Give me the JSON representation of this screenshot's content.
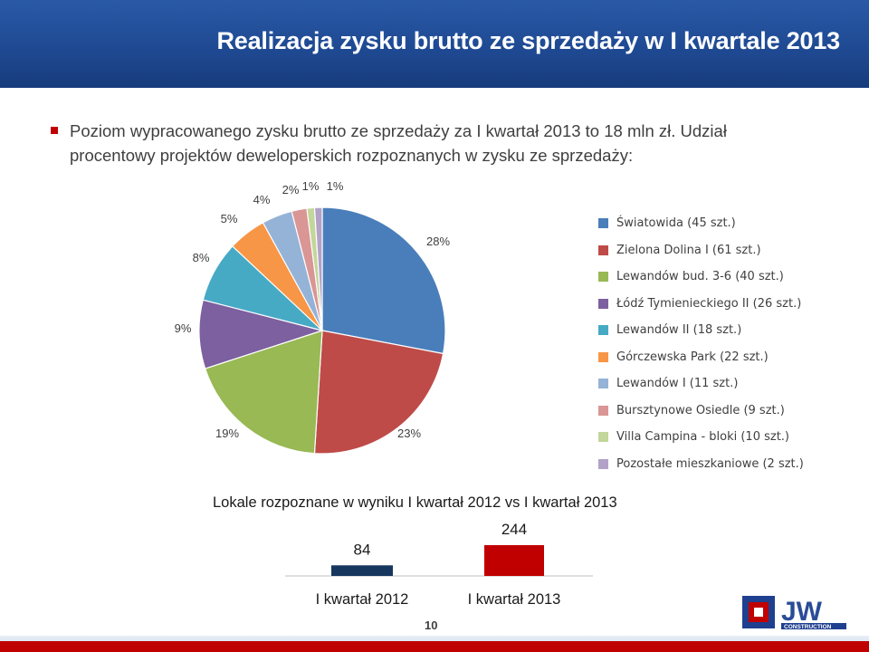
{
  "slide": {
    "title": "Realizacja zysku brutto ze sprzedaży w I kwartale 2013",
    "bullet": "Poziom wypracowanego zysku brutto ze sprzedaży za I kwartał 2013 to 18 mln zł. Udział procentowy projektów deweloperskich rozpoznanych w zysku ze sprzedaży:",
    "page_number": "10",
    "logo_text": "JW",
    "logo_subtext": "CONSTRUCTION"
  },
  "colors": {
    "title_bar": "#1f4a93",
    "bullet": "#c00000",
    "bar_2012": "#17375e",
    "bar_2013": "#c00000"
  },
  "chart_data": [
    {
      "type": "pie",
      "values": [
        28,
        23,
        19,
        9,
        8,
        5,
        4,
        2,
        1,
        1
      ],
      "labels": [
        "28%",
        "23%",
        "19%",
        "9%",
        "8%",
        "5%",
        "4%",
        "2%",
        "1%",
        "1%"
      ],
      "legend": [
        {
          "name": "Światowida (45 szt.)",
          "color": "#4a7ebb"
        },
        {
          "name": "Zielona Dolina I (61 szt.)",
          "color": "#be4b48"
        },
        {
          "name": "Lewandów bud. 3-6 (40 szt.)",
          "color": "#98b954"
        },
        {
          "name": "Łódź Tymienieckiego II (26 szt.)",
          "color": "#7d60a0"
        },
        {
          "name": "Lewandów II (18 szt.)",
          "color": "#46aac5"
        },
        {
          "name": "Górczewska Park (22 szt.)",
          "color": "#f79646"
        },
        {
          "name": "Lewandów I (11 szt.)",
          "color": "#95b3d7"
        },
        {
          "name": "Bursztynowe Osiedle (9 szt.)",
          "color": "#d99694"
        },
        {
          "name": "Villa Campina - bloki (10 szt.)",
          "color": "#c3d69b"
        },
        {
          "name": "Pozostałe mieszkaniowe (2 szt.)",
          "color": "#b3a2c7"
        }
      ],
      "legend_position": "right"
    },
    {
      "type": "bar",
      "title": "Lokale rozpoznane w wyniku I kwartał 2012 vs I kwartał 2013",
      "categories": [
        "I kwartał 2012",
        "I kwartał 2013"
      ],
      "values": [
        84,
        244
      ],
      "labels": [
        "84",
        "244"
      ],
      "colors": [
        "#17375e",
        "#c00000"
      ]
    }
  ]
}
